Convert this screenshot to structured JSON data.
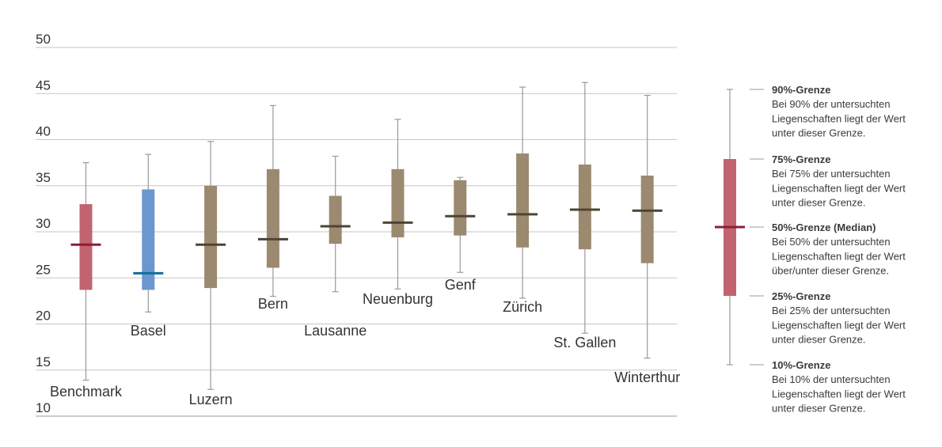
{
  "chart_data": {
    "type": "boxplot",
    "ylim": [
      10,
      50
    ],
    "yticks": [
      10,
      15,
      20,
      25,
      30,
      35,
      40,
      45,
      50
    ],
    "grid": true,
    "categories": [
      "Benchmark",
      "Basel",
      "Luzern",
      "Bern",
      "Lausanne",
      "Neuenburg",
      "Genf",
      "Zürich",
      "St. Gallen",
      "Winterthur"
    ],
    "boxes": [
      {
        "label": "Benchmark",
        "p10": 13.9,
        "p25": 23.7,
        "median": 28.6,
        "p75": 33.0,
        "p90": 37.5,
        "color": "#c2646f",
        "median_color": "#8b1d3b"
      },
      {
        "label": "Basel",
        "p10": 21.3,
        "p25": 23.7,
        "median": 25.5,
        "p75": 34.6,
        "p90": 38.4,
        "color": "#6b97cf",
        "median_color": "#0f6e9e"
      },
      {
        "label": "Luzern",
        "p10": 12.9,
        "p25": 23.9,
        "median": 28.6,
        "p75": 35.0,
        "p90": 39.8,
        "color": "#9b8a70",
        "median_color": "#4f4433"
      },
      {
        "label": "Bern",
        "p10": 23.0,
        "p25": 26.1,
        "median": 29.2,
        "p75": 36.8,
        "p90": 43.7,
        "color": "#9b8a70",
        "median_color": "#4f4433"
      },
      {
        "label": "Lausanne",
        "p10": 23.5,
        "p25": 28.7,
        "median": 30.6,
        "p75": 33.9,
        "p90": 38.2,
        "color": "#9b8a70",
        "median_color": "#4f4433"
      },
      {
        "label": "Neuenburg",
        "p10": 23.8,
        "p25": 29.4,
        "median": 31.0,
        "p75": 36.8,
        "p90": 42.2,
        "color": "#9b8a70",
        "median_color": "#4f4433"
      },
      {
        "label": "Genf",
        "p10": 25.6,
        "p25": 29.6,
        "median": 31.7,
        "p75": 35.6,
        "p90": 35.9,
        "color": "#9b8a70",
        "median_color": "#4f4433"
      },
      {
        "label": "Zürich",
        "p10": 22.8,
        "p25": 28.3,
        "median": 31.9,
        "p75": 38.5,
        "p90": 45.7,
        "color": "#9b8a70",
        "median_color": "#4f4433"
      },
      {
        "label": "St. Gallen",
        "p10": 19.0,
        "p25": 28.1,
        "median": 32.4,
        "p75": 37.3,
        "p90": 46.2,
        "color": "#9b8a70",
        "median_color": "#4f4433"
      },
      {
        "label": "Winterthur",
        "p10": 16.3,
        "p25": 26.6,
        "median": 32.3,
        "p75": 36.1,
        "p90": 44.8,
        "color": "#9b8a70",
        "median_color": "#4f4433"
      }
    ],
    "legend": {
      "placement": "right",
      "box_color": "#c2646f",
      "median_color": "#8b1d3b",
      "entries": [
        {
          "title": "90%-Grenze",
          "lines": [
            "Bei 90% der untersuchten",
            "Liegenschaften liegt der Wert",
            "unter dieser Grenze."
          ]
        },
        {
          "title": "75%-Grenze",
          "lines": [
            "Bei 75% der untersuchten",
            "Liegenschaften liegt der Wert",
            "unter dieser Grenze."
          ]
        },
        {
          "title": "50%-Grenze (Median)",
          "lines": [
            "Bei 50% der untersuchten",
            "Liegenschaften liegt der Wert",
            "über/unter dieser Grenze."
          ]
        },
        {
          "title": "25%-Grenze",
          "lines": [
            "Bei 25% der untersuchten",
            "Liegenschaften liegt der Wert",
            "unter dieser Grenze."
          ]
        },
        {
          "title": "10%-Grenze",
          "lines": [
            "Bei 10% der untersuchten",
            "Liegenschaften liegt der Wert",
            "unter dieser Grenze."
          ]
        }
      ]
    }
  }
}
